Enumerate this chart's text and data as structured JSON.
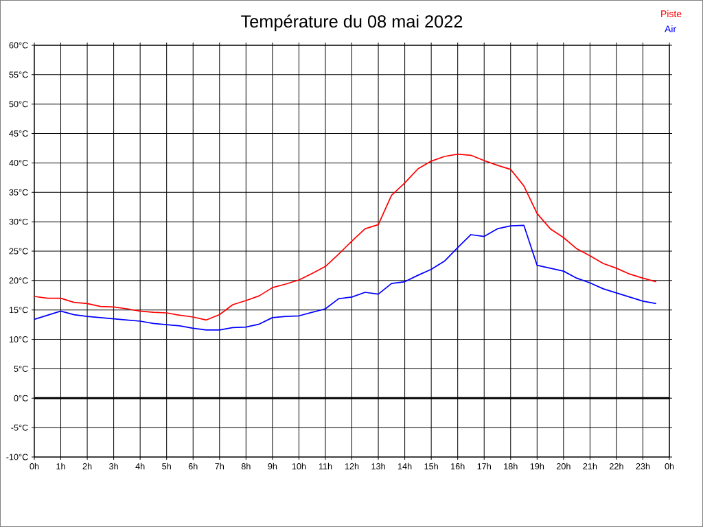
{
  "chart_data": {
    "type": "line",
    "title": "Température du 08 mai 2022",
    "x": [
      "2022-05-08T00:00",
      "2022-05-08T00:30",
      "2022-05-08T01:00",
      "2022-05-08T01:30",
      "2022-05-08T02:00",
      "2022-05-08T02:30",
      "2022-05-08T03:00",
      "2022-05-08T03:30",
      "2022-05-08T04:00",
      "2022-05-08T04:30",
      "2022-05-08T05:00",
      "2022-05-08T05:30",
      "2022-05-08T06:00",
      "2022-05-08T06:30",
      "2022-05-08T07:00",
      "2022-05-08T07:30",
      "2022-05-08T08:00",
      "2022-05-08T08:30",
      "2022-05-08T09:00",
      "2022-05-08T09:30",
      "2022-05-08T10:00",
      "2022-05-08T10:30",
      "2022-05-08T11:00",
      "2022-05-08T11:30",
      "2022-05-08T12:00",
      "2022-05-08T12:30",
      "2022-05-08T13:00",
      "2022-05-08T13:30",
      "2022-05-08T14:00",
      "2022-05-08T14:30",
      "2022-05-08T15:00",
      "2022-05-08T15:30",
      "2022-05-08T16:00",
      "2022-05-08T16:30",
      "2022-05-08T17:00",
      "2022-05-08T17:30",
      "2022-05-08T18:00",
      "2022-05-08T18:30",
      "2022-05-08T19:00",
      "2022-05-08T19:30",
      "2022-05-08T20:00",
      "2022-05-08T20:30",
      "2022-05-08T21:00",
      "2022-05-08T21:30",
      "2022-05-08T22:00",
      "2022-05-08T22:30",
      "2022-05-08T23:00",
      "2022-05-08T23:30"
    ],
    "series": [
      {
        "name": "Piste",
        "color": "#ff0000",
        "values": [
          17.3,
          17.0,
          17.0,
          16.3,
          16.1,
          15.6,
          15.5,
          15.2,
          14.8,
          14.6,
          14.5,
          14.1,
          13.8,
          13.3,
          14.2,
          15.9,
          16.6,
          17.4,
          18.8,
          19.4,
          20.1,
          21.2,
          22.4,
          24.5,
          26.7,
          28.8,
          29.5,
          34.5,
          36.6,
          39.0,
          40.3,
          41.1,
          41.5,
          41.3,
          40.4,
          39.6,
          38.9,
          36.1,
          31.4,
          28.8,
          27.3,
          25.4,
          24.2,
          22.9,
          22.1,
          21.1,
          20.4,
          19.8
        ]
      },
      {
        "name": "Air",
        "color": "#0000ff",
        "values": [
          13.4,
          14.1,
          14.8,
          14.2,
          13.9,
          13.7,
          13.5,
          13.3,
          13.1,
          12.7,
          12.5,
          12.3,
          11.9,
          11.6,
          11.6,
          12.0,
          12.1,
          12.6,
          13.7,
          13.9,
          14.0,
          14.6,
          15.2,
          16.9,
          17.2,
          18.0,
          17.7,
          19.5,
          19.8,
          20.9,
          21.9,
          23.3,
          25.6,
          27.8,
          27.5,
          28.8,
          29.3,
          29.4,
          22.6,
          22.1,
          21.6,
          20.4,
          19.6,
          18.6,
          17.9,
          17.2,
          16.5,
          16.1
        ]
      }
    ],
    "xlim": [
      "2022-05-08T00:00",
      "2022-05-09T00:00"
    ],
    "xticks": [
      {
        "value": "2022-05-08T00:00",
        "label": "0h"
      },
      {
        "value": "2022-05-08T01:00",
        "label": "1h"
      },
      {
        "value": "2022-05-08T02:00",
        "label": "2h"
      },
      {
        "value": "2022-05-08T03:00",
        "label": "3h"
      },
      {
        "value": "2022-05-08T04:00",
        "label": "4h"
      },
      {
        "value": "2022-05-08T05:00",
        "label": "5h"
      },
      {
        "value": "2022-05-08T06:00",
        "label": "6h"
      },
      {
        "value": "2022-05-08T07:00",
        "label": "7h"
      },
      {
        "value": "2022-05-08T08:00",
        "label": "8h"
      },
      {
        "value": "2022-05-08T09:00",
        "label": "9h"
      },
      {
        "value": "2022-05-08T10:00",
        "label": "10h"
      },
      {
        "value": "2022-05-08T11:00",
        "label": "11h"
      },
      {
        "value": "2022-05-08T12:00",
        "label": "12h"
      },
      {
        "value": "2022-05-08T13:00",
        "label": "13h"
      },
      {
        "value": "2022-05-08T14:00",
        "label": "14h"
      },
      {
        "value": "2022-05-08T15:00",
        "label": "15h"
      },
      {
        "value": "2022-05-08T16:00",
        "label": "16h"
      },
      {
        "value": "2022-05-08T17:00",
        "label": "17h"
      },
      {
        "value": "2022-05-08T18:00",
        "label": "18h"
      },
      {
        "value": "2022-05-08T19:00",
        "label": "19h"
      },
      {
        "value": "2022-05-08T20:00",
        "label": "20h"
      },
      {
        "value": "2022-05-08T21:00",
        "label": "21h"
      },
      {
        "value": "2022-05-08T22:00",
        "label": "22h"
      },
      {
        "value": "2022-05-08T23:00",
        "label": "23h"
      },
      {
        "value": "2022-05-09T00:00",
        "label": "0h"
      }
    ],
    "ylim": [
      -10,
      60
    ],
    "yticks": [
      {
        "value": -10,
        "label": "-10°C"
      },
      {
        "value": -5,
        "label": "-5°C"
      },
      {
        "value": 0,
        "label": "0°C"
      },
      {
        "value": 5,
        "label": "5°C"
      },
      {
        "value": 10,
        "label": "10°C"
      },
      {
        "value": 15,
        "label": "15°C"
      },
      {
        "value": 20,
        "label": "20°C"
      },
      {
        "value": 25,
        "label": "25°C"
      },
      {
        "value": 30,
        "label": "30°C"
      },
      {
        "value": 35,
        "label": "35°C"
      },
      {
        "value": 40,
        "label": "40°C"
      },
      {
        "value": 45,
        "label": "45°C"
      },
      {
        "value": 50,
        "label": "50°C"
      },
      {
        "value": 55,
        "label": "55°C"
      },
      {
        "value": 60,
        "label": "60°C"
      }
    ],
    "ref_lines": [
      {
        "axis": "y",
        "value": 0,
        "color": "#000000"
      }
    ],
    "grid": true,
    "legend": "top right",
    "marker": "none",
    "line_style": "solid"
  }
}
